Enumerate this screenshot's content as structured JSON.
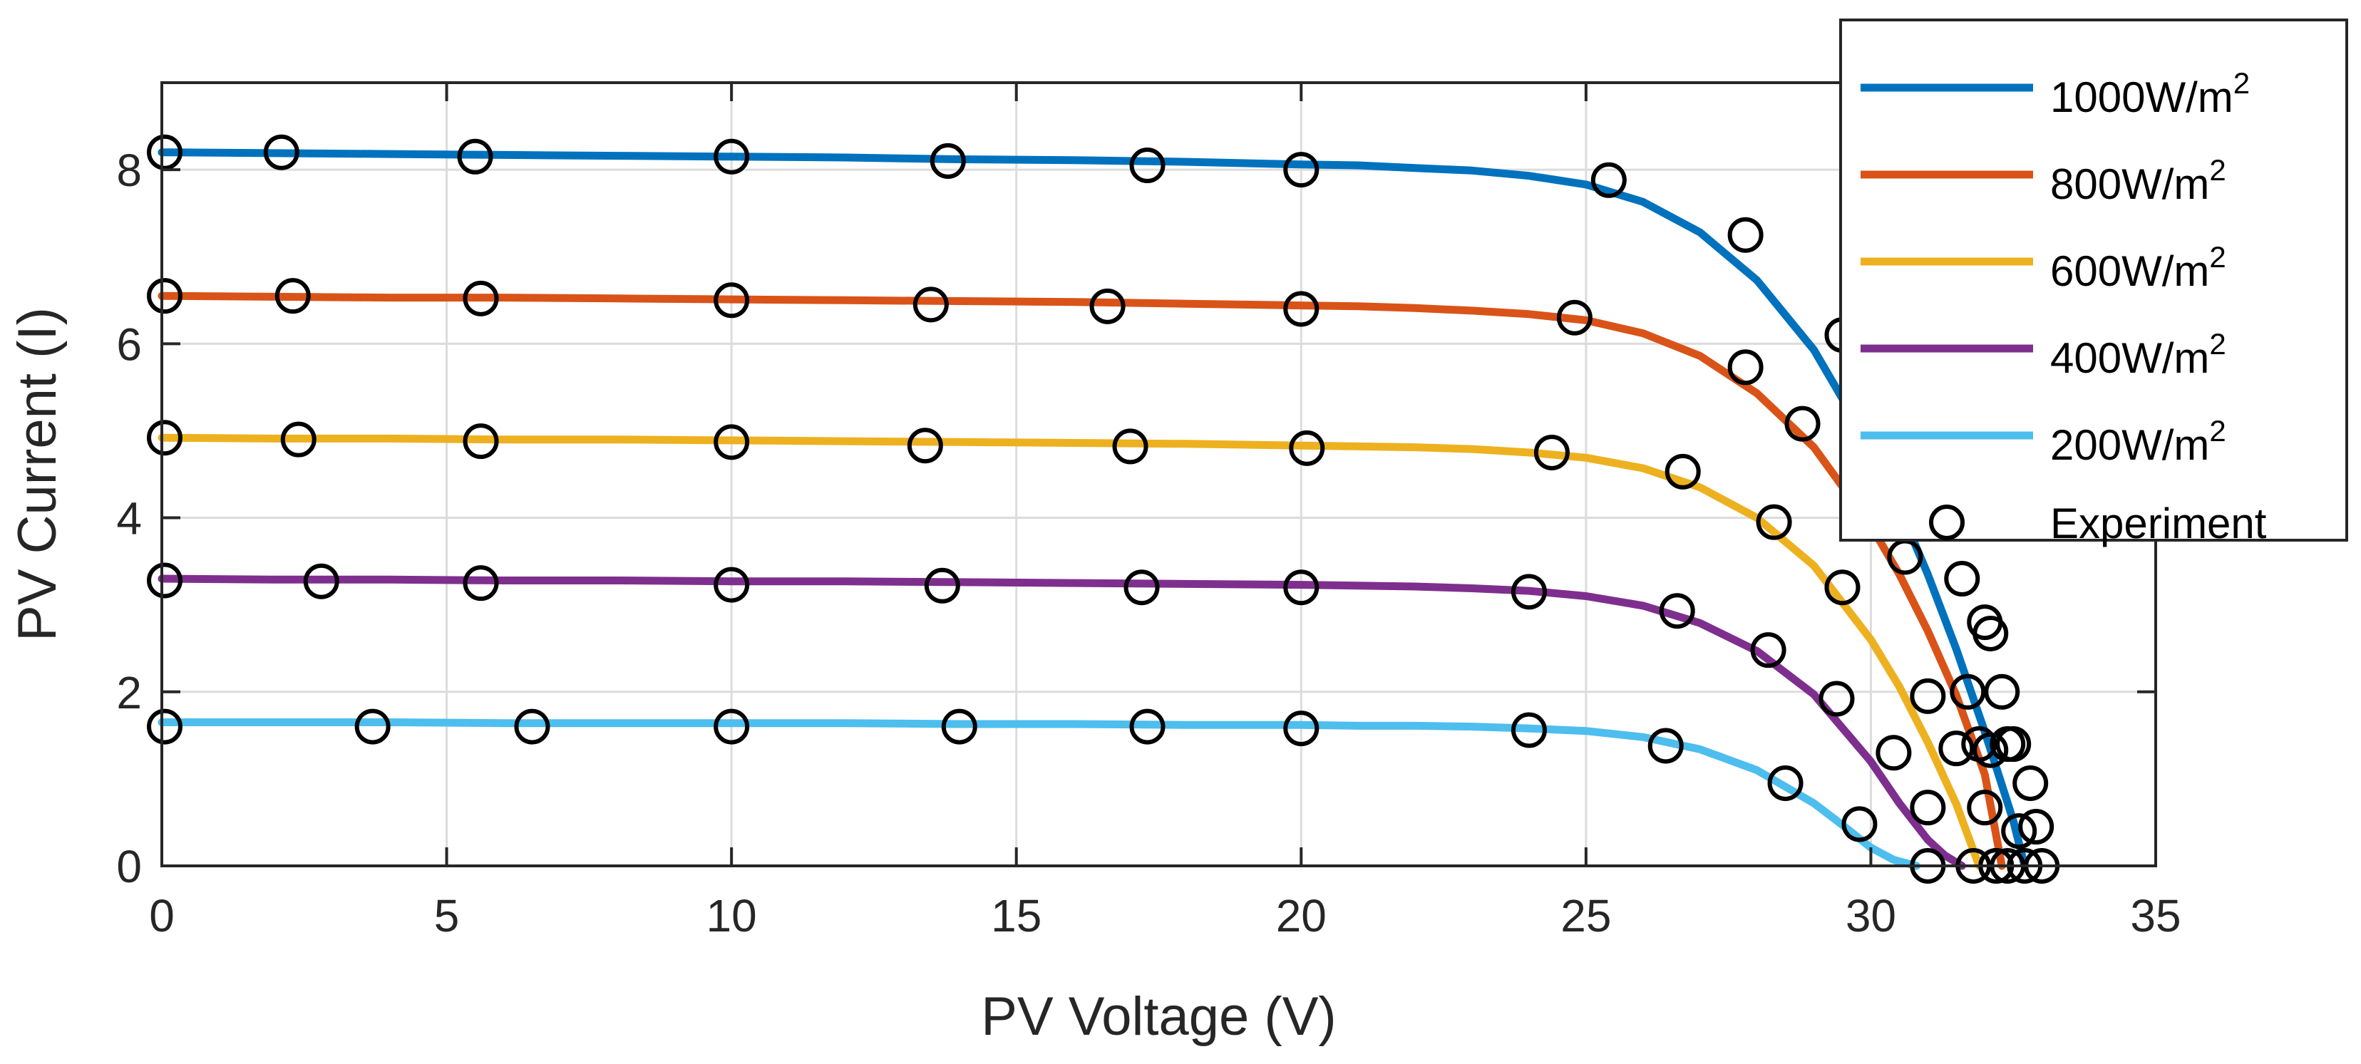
{
  "chart_data": {
    "type": "line",
    "xlabel": "PV Voltage (V)",
    "ylabel": "PV Current (I)",
    "xlim": [
      0,
      35
    ],
    "ylim": [
      0,
      9
    ],
    "xticks": [
      0,
      5,
      10,
      15,
      20,
      25,
      30,
      35
    ],
    "yticks": [
      0,
      2,
      4,
      6,
      8
    ],
    "grid": true,
    "legend_position": "top-right (extends above plot)",
    "series": [
      {
        "name": "1000W/m",
        "superscript": "2",
        "color": "#0072BD",
        "isc": 8.2,
        "voc": 32.7,
        "x": [
          0,
          2,
          4,
          6,
          8,
          10,
          12,
          14,
          16,
          18,
          20,
          21,
          22,
          23,
          24,
          25,
          26,
          27,
          28,
          29,
          30,
          30.5,
          31,
          31.5,
          32,
          32.3,
          32.5,
          32.7
        ],
        "y": [
          8.2,
          8.19,
          8.18,
          8.17,
          8.16,
          8.15,
          8.14,
          8.12,
          8.11,
          8.09,
          8.06,
          8.05,
          8.02,
          7.99,
          7.93,
          7.83,
          7.63,
          7.28,
          6.73,
          5.93,
          4.81,
          4.12,
          3.35,
          2.49,
          1.54,
          0.93,
          0.52,
          0.0
        ]
      },
      {
        "name": "800W/m",
        "superscript": "2",
        "color": "#D95319",
        "isc": 6.55,
        "voc": 32.3,
        "x": [
          0,
          2,
          4,
          6,
          8,
          10,
          12,
          14,
          16,
          18,
          20,
          21,
          22,
          23,
          24,
          25,
          26,
          27,
          28,
          29,
          30,
          30.5,
          31,
          31.5,
          32,
          32.3
        ],
        "y": [
          6.55,
          6.54,
          6.53,
          6.53,
          6.52,
          6.51,
          6.5,
          6.49,
          6.48,
          6.46,
          6.44,
          6.43,
          6.41,
          6.38,
          6.34,
          6.27,
          6.12,
          5.86,
          5.43,
          4.81,
          3.91,
          3.35,
          2.7,
          1.96,
          1.05,
          0.0
        ]
      },
      {
        "name": "600W/m",
        "superscript": "2",
        "color": "#EDB120",
        "isc": 4.92,
        "voc": 31.9,
        "x": [
          0,
          2,
          4,
          6,
          8,
          10,
          12,
          14,
          16,
          18,
          20,
          21,
          22,
          23,
          24,
          25,
          26,
          27,
          28,
          29,
          30,
          30.5,
          31,
          31.5,
          31.9
        ],
        "y": [
          4.92,
          4.91,
          4.91,
          4.9,
          4.9,
          4.89,
          4.88,
          4.87,
          4.86,
          4.85,
          4.83,
          4.82,
          4.81,
          4.79,
          4.75,
          4.69,
          4.57,
          4.35,
          4.0,
          3.45,
          2.6,
          2.06,
          1.42,
          0.71,
          0.0
        ]
      },
      {
        "name": "400W/m",
        "superscript": "2",
        "color": "#7E2F8E",
        "isc": 3.3,
        "voc": 31.6,
        "x": [
          0,
          2,
          4,
          6,
          8,
          10,
          12,
          14,
          16,
          18,
          20,
          21,
          22,
          23,
          24,
          25,
          26,
          27,
          28,
          29,
          30,
          30.5,
          31,
          31.3,
          31.6
        ],
        "y": [
          3.3,
          3.29,
          3.29,
          3.28,
          3.28,
          3.27,
          3.27,
          3.26,
          3.25,
          3.24,
          3.23,
          3.22,
          3.21,
          3.19,
          3.16,
          3.1,
          2.99,
          2.79,
          2.47,
          1.97,
          1.2,
          0.72,
          0.3,
          0.12,
          0.0
        ]
      },
      {
        "name": "200W/m",
        "superscript": "2",
        "color": "#4DBEEE",
        "isc": 1.65,
        "voc": 30.8,
        "x": [
          0,
          2,
          4,
          6,
          8,
          10,
          12,
          14,
          16,
          18,
          20,
          21,
          22,
          23,
          24,
          25,
          26,
          27,
          28,
          29,
          29.5,
          30,
          30.4,
          30.8
        ],
        "y": [
          1.65,
          1.65,
          1.65,
          1.64,
          1.64,
          1.64,
          1.64,
          1.63,
          1.63,
          1.62,
          1.62,
          1.61,
          1.61,
          1.6,
          1.58,
          1.55,
          1.48,
          1.34,
          1.1,
          0.72,
          0.47,
          0.21,
          0.07,
          0.0
        ]
      }
    ],
    "experiment": {
      "name": "Experiment",
      "color": "#000000",
      "points": [
        [
          0.05,
          8.2
        ],
        [
          2.1,
          8.2
        ],
        [
          5.5,
          8.15
        ],
        [
          10.0,
          8.15
        ],
        [
          13.8,
          8.1
        ],
        [
          17.3,
          8.05
        ],
        [
          20.0,
          8.0
        ],
        [
          25.4,
          7.88
        ],
        [
          27.8,
          7.25
        ],
        [
          29.5,
          6.1
        ],
        [
          31.5,
          4.05
        ],
        [
          32.0,
          2.8
        ],
        [
          32.4,
          1.4
        ],
        [
          32.6,
          0.4
        ],
        [
          33.0,
          0.0
        ],
        [
          0.05,
          6.55
        ],
        [
          2.3,
          6.55
        ],
        [
          5.6,
          6.52
        ],
        [
          10.0,
          6.5
        ],
        [
          13.5,
          6.45
        ],
        [
          16.6,
          6.43
        ],
        [
          20.0,
          6.4
        ],
        [
          24.8,
          6.3
        ],
        [
          27.8,
          5.73
        ],
        [
          28.8,
          5.08
        ],
        [
          30.6,
          3.55
        ],
        [
          31.6,
          3.3
        ],
        [
          32.1,
          2.67
        ],
        [
          32.3,
          2.0
        ],
        [
          32.5,
          1.4
        ],
        [
          32.8,
          0.95
        ],
        [
          32.9,
          0.45
        ],
        [
          32.7,
          0.0
        ],
        [
          0.05,
          4.92
        ],
        [
          2.4,
          4.9
        ],
        [
          5.6,
          4.88
        ],
        [
          10.0,
          4.87
        ],
        [
          13.4,
          4.83
        ],
        [
          17.0,
          4.82
        ],
        [
          20.1,
          4.8
        ],
        [
          24.4,
          4.75
        ],
        [
          26.7,
          4.53
        ],
        [
          28.3,
          3.95
        ],
        [
          29.5,
          3.2
        ],
        [
          31.0,
          1.95
        ],
        [
          31.5,
          1.35
        ],
        [
          31.7,
          2.0
        ],
        [
          32.0,
          0.67
        ],
        [
          32.2,
          0.0
        ],
        [
          0.05,
          3.28
        ],
        [
          2.8,
          3.27
        ],
        [
          5.6,
          3.25
        ],
        [
          10.0,
          3.23
        ],
        [
          13.7,
          3.22
        ],
        [
          17.2,
          3.2
        ],
        [
          20.0,
          3.2
        ],
        [
          24.0,
          3.15
        ],
        [
          26.6,
          2.93
        ],
        [
          28.2,
          2.48
        ],
        [
          29.4,
          1.92
        ],
        [
          30.4,
          1.3
        ],
        [
          31.0,
          0.67
        ],
        [
          31.9,
          1.4
        ],
        [
          32.2,
          0.0
        ],
        [
          31.8,
          0.0
        ],
        [
          0.05,
          1.6
        ],
        [
          3.7,
          1.6
        ],
        [
          6.5,
          1.6
        ],
        [
          10.0,
          1.6
        ],
        [
          14.0,
          1.6
        ],
        [
          17.3,
          1.6
        ],
        [
          20.0,
          1.58
        ],
        [
          24.0,
          1.56
        ],
        [
          26.4,
          1.38
        ],
        [
          28.5,
          0.95
        ],
        [
          29.8,
          0.48
        ],
        [
          31.0,
          0.0
        ],
        [
          32.1,
          1.33
        ],
        [
          32.4,
          0.0
        ]
      ]
    }
  }
}
